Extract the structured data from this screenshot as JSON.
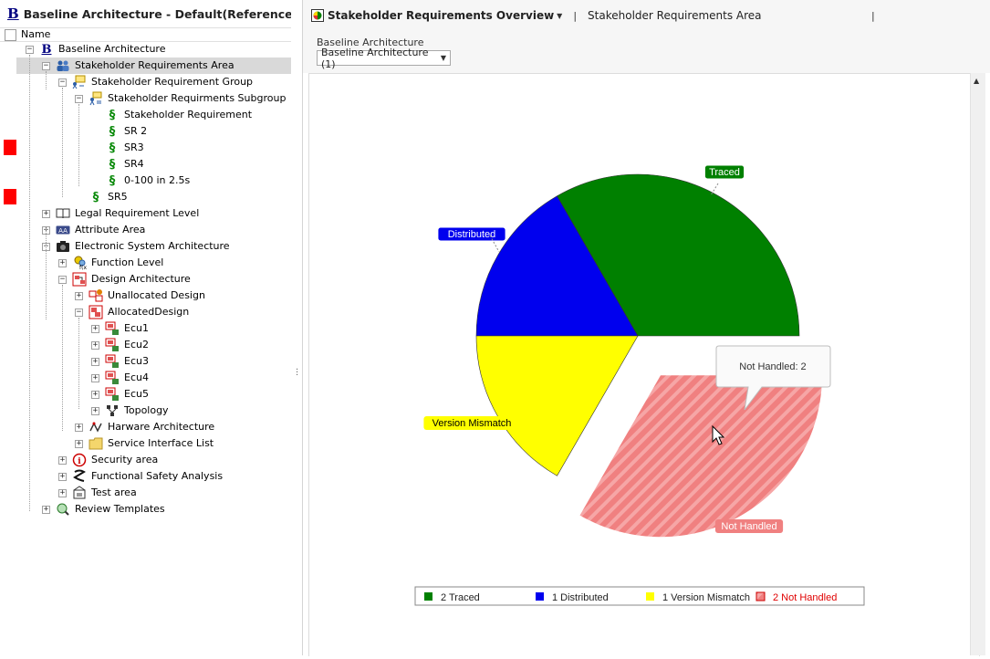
{
  "left": {
    "title": "Baseline Architecture - Default(Reference architecture)",
    "column_header": "Name",
    "tree": [
      {
        "label": "Baseline Architecture",
        "icon": "baseline-b-icon",
        "expander": "−"
      },
      {
        "label": "Stakeholder Requirements Area",
        "icon": "people-icon",
        "expander": "−",
        "selected": true
      },
      {
        "label": "Stakeholder Requirement Group",
        "icon": "requirement-group-icon",
        "expander": "−"
      },
      {
        "label": "Stakeholder Requirments Subgroup",
        "icon": "requirement-subgroup-icon",
        "expander": "−"
      },
      {
        "label": "Stakeholder Requirement",
        "icon": "section-sign-icon",
        "expander": ""
      },
      {
        "label": "SR 2",
        "icon": "section-sign-icon",
        "expander": ""
      },
      {
        "label": "SR3",
        "icon": "section-sign-icon",
        "expander": ""
      },
      {
        "label": "SR4",
        "icon": "section-sign-icon",
        "expander": ""
      },
      {
        "label": "0-100 in 2.5s",
        "icon": "section-sign-icon",
        "expander": ""
      },
      {
        "label": "SR5",
        "icon": "section-sign-icon",
        "expander": ""
      },
      {
        "label": "Legal Requirement Level",
        "icon": "book-icon",
        "expander": "+"
      },
      {
        "label": "Attribute Area",
        "icon": "attribute-icon",
        "expander": "+"
      },
      {
        "label": "Electronic System Architecture",
        "icon": "camera-icon",
        "expander": "−"
      },
      {
        "label": "Function Level",
        "icon": "function-icon",
        "expander": "+"
      },
      {
        "label": "Design Architecture",
        "icon": "design-icon",
        "expander": "−"
      },
      {
        "label": "Unallocated Design",
        "icon": "unallocated-icon",
        "expander": "+"
      },
      {
        "label": "AllocatedDesign",
        "icon": "allocated-icon",
        "expander": "−"
      },
      {
        "label": "Ecu1",
        "icon": "ecu-icon",
        "expander": "+"
      },
      {
        "label": "Ecu2",
        "icon": "ecu-icon",
        "expander": "+"
      },
      {
        "label": "Ecu3",
        "icon": "ecu-icon",
        "expander": "+"
      },
      {
        "label": "Ecu4",
        "icon": "ecu-icon",
        "expander": "+"
      },
      {
        "label": "Ecu5",
        "icon": "ecu-icon",
        "expander": "+"
      },
      {
        "label": "Topology",
        "icon": "topology-icon",
        "expander": "+"
      },
      {
        "label": "Harware Architecture",
        "icon": "hardware-icon",
        "expander": "+"
      },
      {
        "label": "Service Interface List",
        "icon": "folder-icon",
        "expander": "+"
      },
      {
        "label": "Security area",
        "icon": "info-circle-icon",
        "expander": "+"
      },
      {
        "label": "Functional Safety Analysis",
        "icon": "safety-icon",
        "expander": "+"
      },
      {
        "label": "Test area",
        "icon": "test-icon",
        "expander": "+"
      },
      {
        "label": "Review Templates",
        "icon": "review-icon",
        "expander": "+"
      }
    ]
  },
  "right": {
    "tab_title": "Stakeholder Requirements Overview",
    "area_label": "Stakeholder Requirements Area",
    "baseline_caption": "Baseline Architecture",
    "baseline_selected": "Baseline Architecture (1)",
    "tooltip": "Not Handled: 2"
  },
  "chart_data": {
    "type": "pie",
    "slices": [
      {
        "label": "Traced",
        "value": 2,
        "color": "#008000"
      },
      {
        "label": "Distributed",
        "value": 1,
        "color": "#0000ee"
      },
      {
        "label": "Version Mismatch",
        "value": 1,
        "color": "#ffff00"
      },
      {
        "label": "Not Handled",
        "value": 2,
        "color": "#f08080"
      }
    ],
    "legend": [
      "2 Traced",
      "1 Distributed",
      "1 Version Mismatch",
      "2 Not Handled"
    ],
    "legend_placement": "bottom",
    "highlighted": "Not Handled"
  }
}
